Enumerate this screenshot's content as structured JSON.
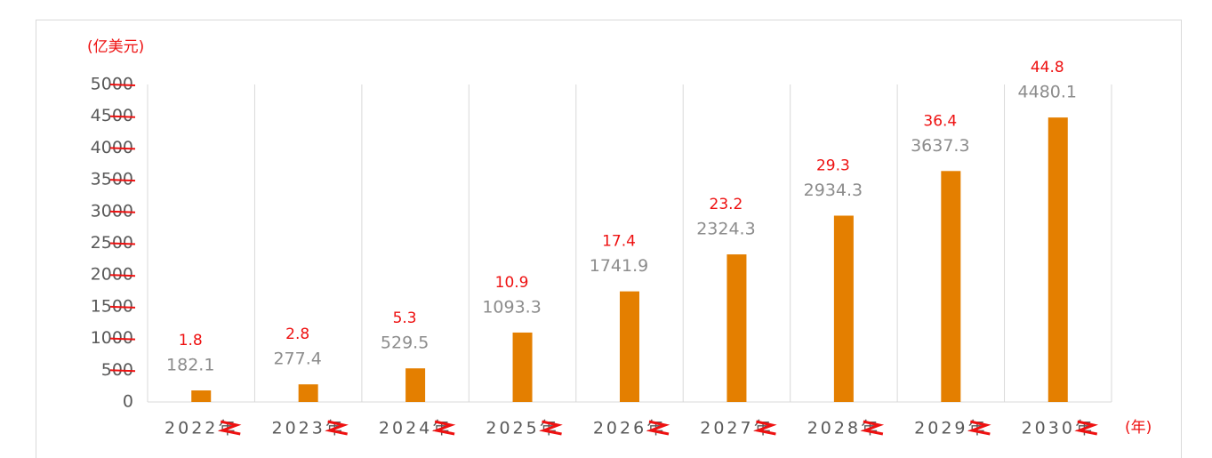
{
  "chart_data": {
    "type": "bar",
    "unit_label": "(亿美元)",
    "x_unit_label": "(年)",
    "categories": [
      "2022年",
      "2023年",
      "2024年",
      "2025年",
      "2026年",
      "2027年",
      "2028年",
      "2029年",
      "2030年"
    ],
    "values": [
      182.1,
      277.4,
      529.5,
      1093.3,
      1741.9,
      2324.3,
      2934.3,
      3637.3,
      4480.1
    ],
    "annotations": [
      1.8,
      2.8,
      5.3,
      10.9,
      17.4,
      23.2,
      29.3,
      36.4,
      44.8
    ],
    "color": "#e47f00",
    "annotation_color": "#ee1111",
    "ylim": [
      0,
      5000
    ],
    "yticks": [
      0,
      500,
      1000,
      1500,
      2000,
      2500,
      3000,
      3500,
      4000,
      4500,
      5000
    ],
    "grid": true
  }
}
